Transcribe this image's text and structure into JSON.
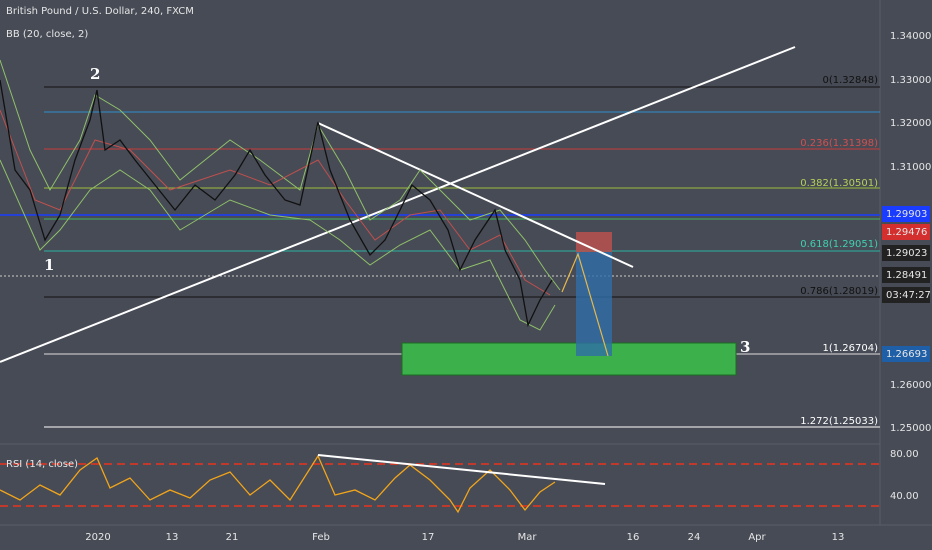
{
  "header": {
    "title": "British Pound / U.S. Dollar, 240, FXCM",
    "indicator": "BB (20, close, 2)",
    "rsi_label": "RSI (14, close)"
  },
  "price_axis": [
    "1.34000",
    "1.33000",
    "1.32000",
    "1.31000",
    "1.26000",
    "1.25000"
  ],
  "price_boxes": {
    "blue_top": "1.29903",
    "red": "1.29476",
    "level": "1.29023",
    "last": "1.28491",
    "timer": "03:47:27",
    "blue_bottom": "1.26693"
  },
  "rsi_axis": [
    "80.00",
    "40.00"
  ],
  "date_axis": [
    "2020",
    "13",
    "21",
    "Feb",
    "17",
    "Mar",
    "16",
    "24",
    "Apr",
    "13"
  ],
  "fib_levels": [
    "0(1.32848)",
    "0.236(1.31398)",
    "0.382(1.30501)",
    "0.618(1.29051)",
    "0.786(1.28019)",
    "1(1.26704)",
    "1.272(1.25033)"
  ],
  "wave_labels": [
    "1",
    "2",
    "3"
  ]
}
